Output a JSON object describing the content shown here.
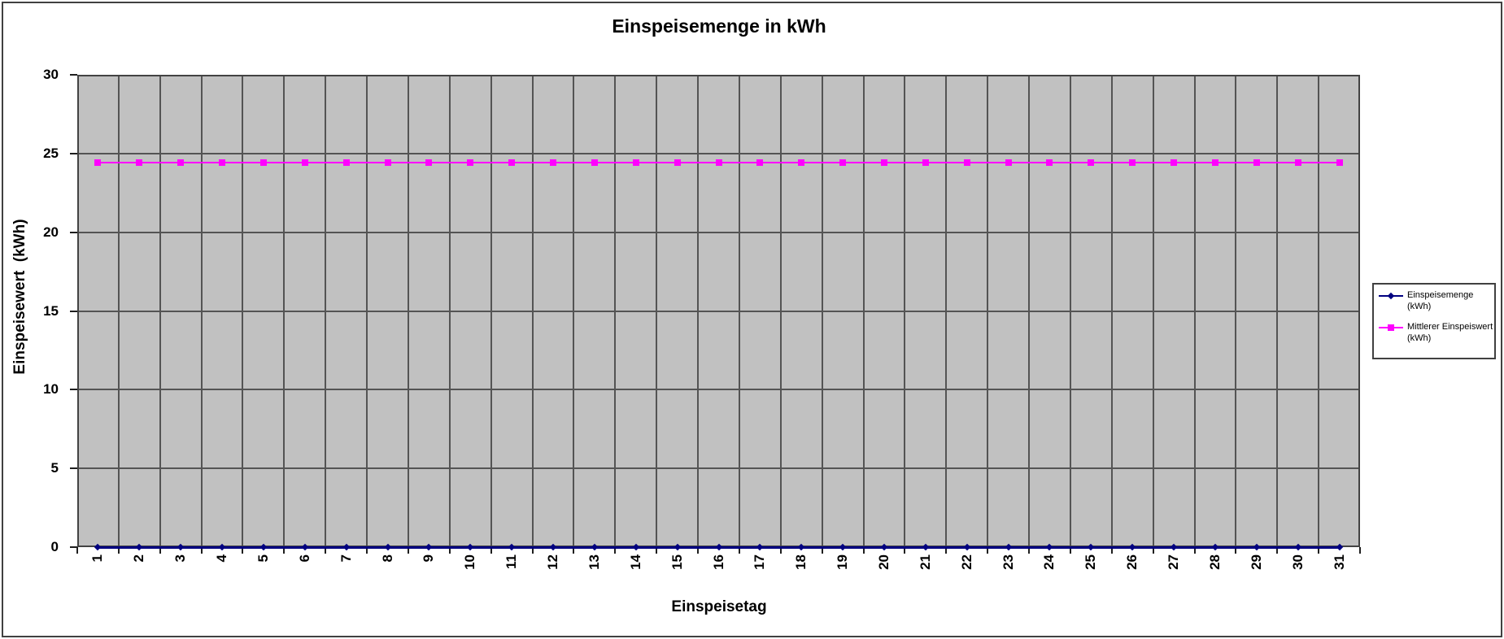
{
  "window": {
    "background": "#ffffff",
    "border_color": "#414141"
  },
  "chart_data": {
    "type": "line",
    "title": "Einspeisemenge in kWh",
    "xlabel": "Einspeisetag",
    "ylabel": "Einspeisewert  (kWh)",
    "categories": [
      1,
      2,
      3,
      4,
      5,
      6,
      7,
      8,
      9,
      10,
      11,
      12,
      13,
      14,
      15,
      16,
      17,
      18,
      19,
      20,
      21,
      22,
      23,
      24,
      25,
      26,
      27,
      28,
      29,
      30,
      31
    ],
    "series": [
      {
        "name": "Einspeisemenge (kWh)",
        "legend_label_lines": [
          "Einspeisemenge",
          "(kWh)"
        ],
        "color": "#000080",
        "marker": "diamond",
        "values": [
          0,
          0,
          0,
          0,
          0,
          0,
          0,
          0,
          0,
          0,
          0,
          0,
          0,
          0,
          0,
          0,
          0,
          0,
          0,
          0,
          0,
          0,
          0,
          0,
          0,
          0,
          0,
          0,
          0,
          0,
          0
        ]
      },
      {
        "name": "Mittlerer Einspeiswert (kWh)",
        "legend_label_lines": [
          "Mittlerer Einspeiswert",
          "(kWh)"
        ],
        "color": "#ff00ff",
        "marker": "square",
        "values": [
          24.4,
          24.4,
          24.4,
          24.4,
          24.4,
          24.4,
          24.4,
          24.4,
          24.4,
          24.4,
          24.4,
          24.4,
          24.4,
          24.4,
          24.4,
          24.4,
          24.4,
          24.4,
          24.4,
          24.4,
          24.4,
          24.4,
          24.4,
          24.4,
          24.4,
          24.4,
          24.4,
          24.4,
          24.4,
          24.4,
          24.4
        ]
      }
    ],
    "ylim": [
      0,
      30
    ],
    "y_ticks": [
      0,
      5,
      10,
      15,
      20,
      25,
      30
    ],
    "grid": true,
    "legend_position": "right",
    "plot_bg_color": "#c1c1c1",
    "grid_color": "#545454",
    "axis_color": "#1f1f1f",
    "plot_border_color": "#434343"
  }
}
